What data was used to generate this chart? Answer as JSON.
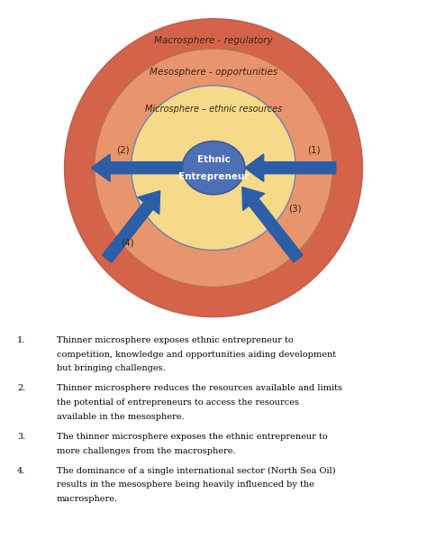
{
  "bg_color": "#ffffff",
  "macrosphere_color": "#d4634a",
  "mesosphere_color": "#e8956d",
  "microsphere_color": "#f7d98a",
  "center_color": "#4d6fb5",
  "center_edge_color": "#3a5a9c",
  "microsphere_edge_color": "#7080b0",
  "mesosphere_edge_color": "#b87050",
  "macrosphere_edge_color": "#c06050",
  "arrow_color": "#2b5ea7",
  "text_dark": "#3a2510",
  "macrosphere_label": "Macrosphere - regulatory",
  "mesosphere_label": "Mesosphere - opportunities",
  "microsphere_label": "Microsphere – ethnic resources",
  "center_label_line1": "Ethnic",
  "center_label_line2": "Entrepreneur",
  "arrow_labels": [
    "(1)",
    "(2)",
    "(3)",
    "(4)"
  ],
  "note1": "Thinner microsphere exposes ethnic entrepreneur to competition, knowledge and opportunities aiding development but bringing challenges.",
  "note2": "Thinner microsphere reduces the resources available and limits the potential of entrepreneurs to access the resources available in the mesosphere.",
  "note3": "The thinner microsphere exposes the ethnic entrepreneur to more challenges from the macrosphere.",
  "note4": "The dominance of a single international sector (North Sea Oil) results in the mesosphere being heavily influenced by the macrosphere.",
  "fig_width": 4.74,
  "fig_height": 6.09
}
